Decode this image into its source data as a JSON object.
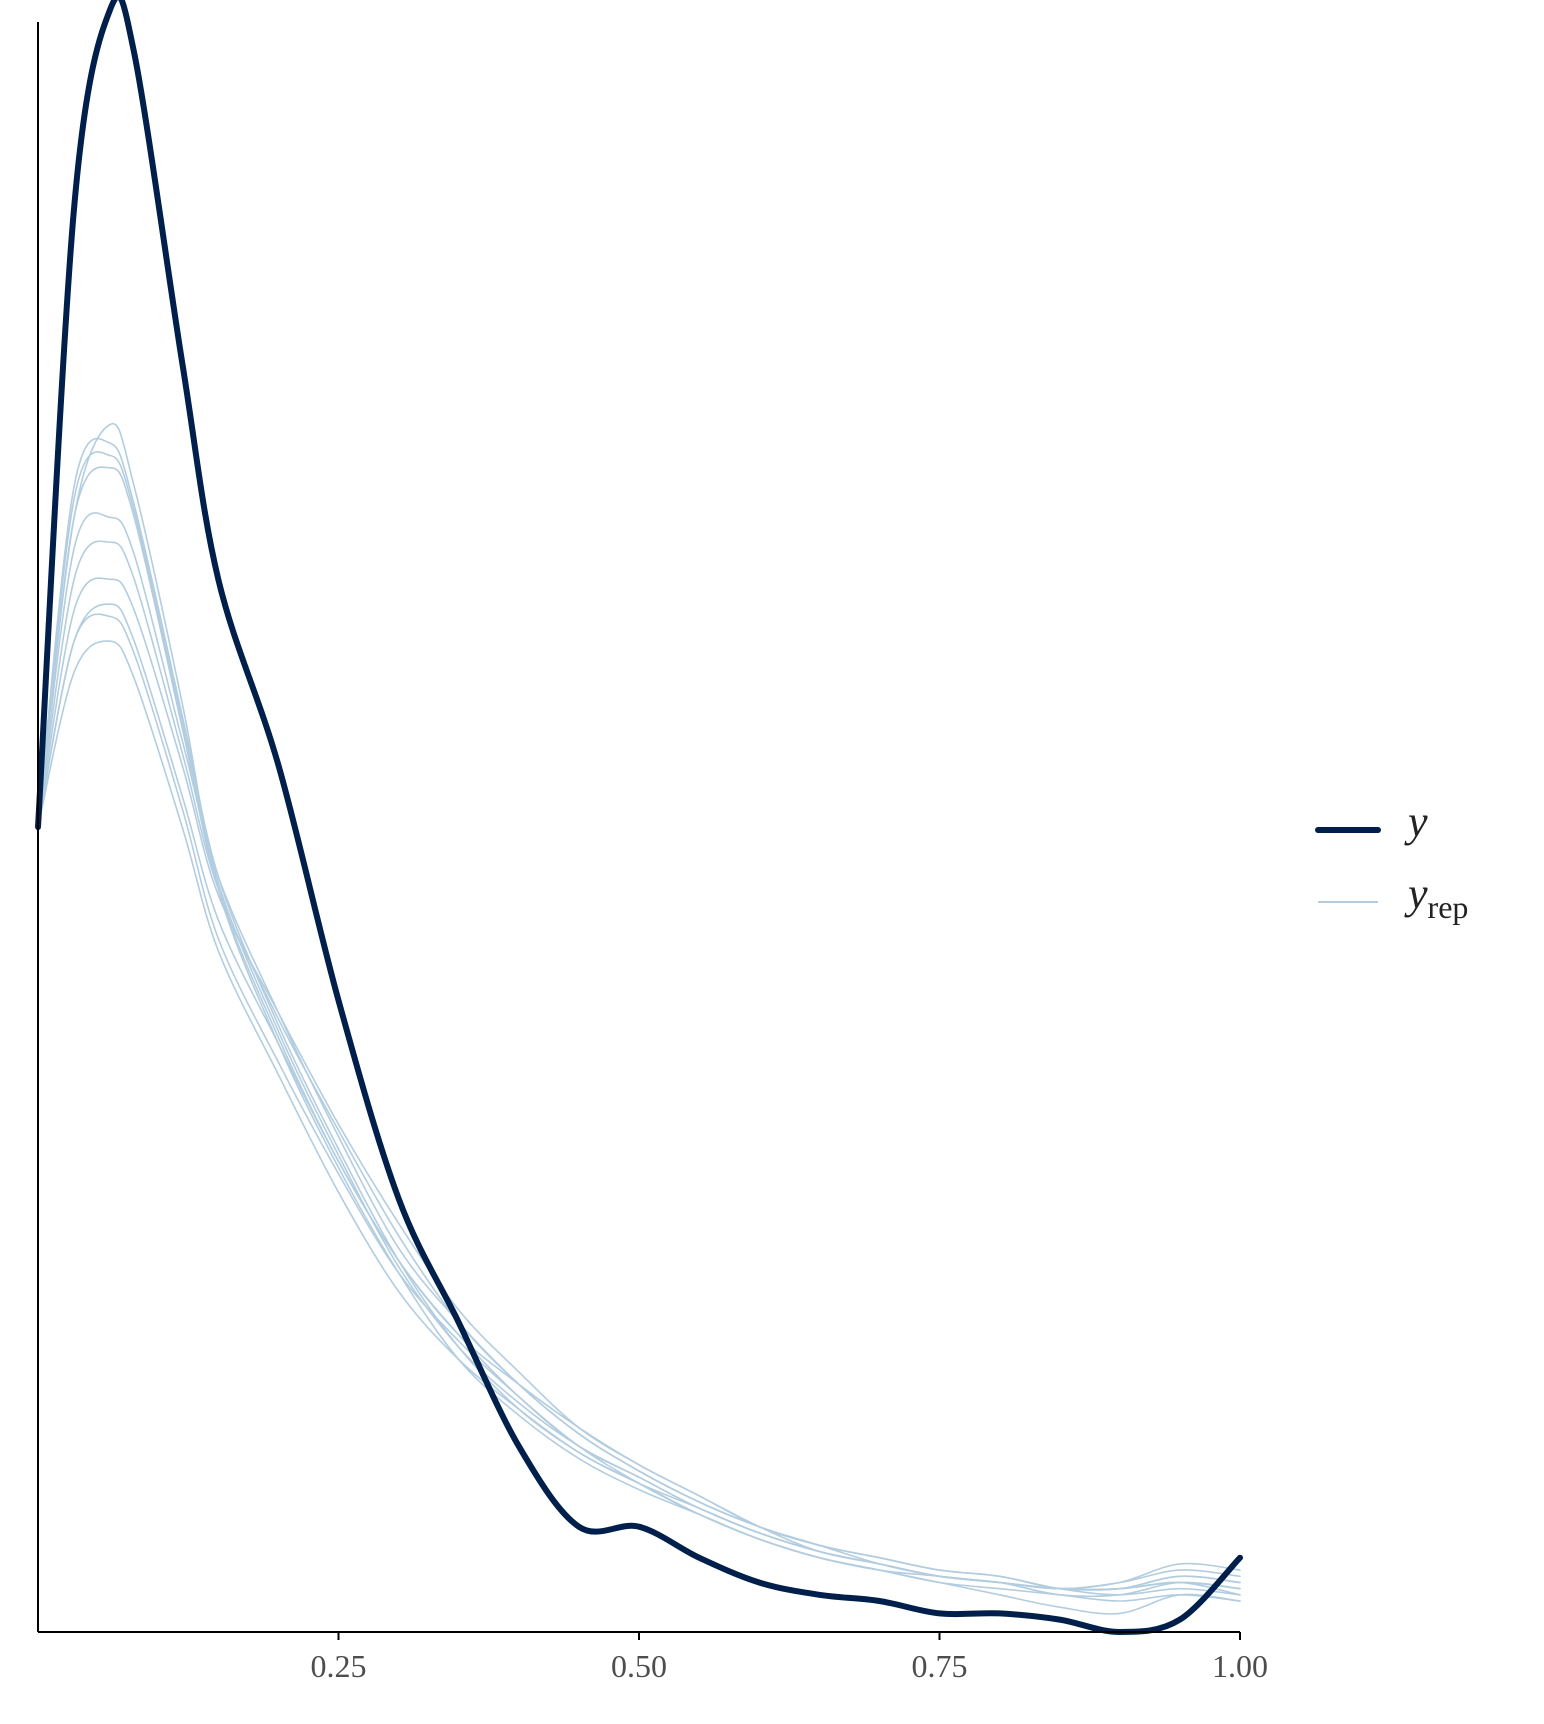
{
  "chart_data": {
    "type": "line",
    "title": "",
    "xlabel": "",
    "ylabel": "",
    "xlim": [
      0,
      1
    ],
    "ylim": [
      0,
      2.6
    ],
    "x_ticks": [
      0.25,
      0.5,
      0.75,
      1.0
    ],
    "x_tick_labels": [
      "0.25",
      "0.50",
      "0.75",
      "1.00"
    ],
    "y_ticks_shown": false,
    "grid": false,
    "legend": {
      "position": "right",
      "items": [
        {
          "key": "y",
          "label": "y",
          "subscript": ""
        },
        {
          "key": "yrep",
          "label": "y",
          "subscript": "rep"
        }
      ]
    },
    "colors": {
      "y": "#011f4b",
      "yrep": "#b3cde0"
    },
    "x": [
      0.0,
      0.03,
      0.06,
      0.08,
      0.12,
      0.15,
      0.2,
      0.25,
      0.3,
      0.35,
      0.4,
      0.45,
      0.5,
      0.55,
      0.6,
      0.65,
      0.7,
      0.75,
      0.8,
      0.85,
      0.9,
      0.95,
      1.0
    ],
    "series": [
      {
        "key": "y",
        "values": [
          1.3,
          2.3,
          2.62,
          2.55,
          2.05,
          1.7,
          1.4,
          1.02,
          0.7,
          0.5,
          0.3,
          0.17,
          0.17,
          0.12,
          0.08,
          0.06,
          0.05,
          0.03,
          0.03,
          0.02,
          0.0,
          0.02,
          0.12
        ]
      },
      {
        "key": "yrep",
        "values": [
          1.3,
          1.8,
          1.95,
          1.85,
          1.5,
          1.2,
          0.95,
          0.75,
          0.58,
          0.44,
          0.35,
          0.28,
          0.23,
          0.19,
          0.15,
          0.12,
          0.1,
          0.09,
          0.08,
          0.07,
          0.08,
          0.1,
          0.09
        ]
      },
      {
        "key": "yrep",
        "values": [
          1.3,
          1.85,
          1.92,
          1.82,
          1.48,
          1.22,
          0.98,
          0.78,
          0.6,
          0.46,
          0.36,
          0.29,
          0.24,
          0.2,
          0.16,
          0.13,
          0.11,
          0.09,
          0.08,
          0.07,
          0.07,
          0.09,
          0.08
        ]
      },
      {
        "key": "yrep",
        "values": [
          1.3,
          1.8,
          1.88,
          1.8,
          1.46,
          1.2,
          0.96,
          0.76,
          0.6,
          0.48,
          0.38,
          0.3,
          0.25,
          0.2,
          0.16,
          0.13,
          0.11,
          0.09,
          0.08,
          0.06,
          0.06,
          0.08,
          0.07
        ]
      },
      {
        "key": "yrep",
        "values": [
          1.3,
          1.83,
          1.9,
          1.81,
          1.47,
          1.21,
          0.97,
          0.77,
          0.59,
          0.46,
          0.37,
          0.3,
          0.25,
          0.2,
          0.16,
          0.13,
          0.11,
          0.09,
          0.08,
          0.07,
          0.07,
          0.08,
          0.07
        ]
      },
      {
        "key": "yrep",
        "values": [
          1.3,
          1.75,
          1.8,
          1.74,
          1.44,
          1.22,
          1.0,
          0.8,
          0.62,
          0.5,
          0.4,
          0.32,
          0.26,
          0.21,
          0.17,
          0.14,
          0.11,
          0.09,
          0.08,
          0.07,
          0.07,
          0.09,
          0.08
        ]
      },
      {
        "key": "yrep",
        "values": [
          1.3,
          1.7,
          1.76,
          1.7,
          1.42,
          1.2,
          0.99,
          0.81,
          0.64,
          0.5,
          0.4,
          0.32,
          0.26,
          0.21,
          0.17,
          0.14,
          0.12,
          0.1,
          0.09,
          0.07,
          0.06,
          0.07,
          0.06
        ]
      },
      {
        "key": "yrep",
        "values": [
          1.3,
          1.65,
          1.7,
          1.65,
          1.4,
          1.19,
          1.0,
          0.82,
          0.66,
          0.52,
          0.42,
          0.33,
          0.27,
          0.22,
          0.17,
          0.14,
          0.12,
          0.1,
          0.09,
          0.07,
          0.07,
          0.08,
          0.06
        ]
      },
      {
        "key": "yrep",
        "values": [
          1.3,
          1.6,
          1.64,
          1.58,
          1.33,
          1.12,
          0.92,
          0.74,
          0.58,
          0.47,
          0.38,
          0.3,
          0.24,
          0.19,
          0.15,
          0.12,
          0.1,
          0.08,
          0.07,
          0.06,
          0.05,
          0.06,
          0.05
        ]
      },
      {
        "key": "yrep",
        "values": [
          1.3,
          1.6,
          1.66,
          1.6,
          1.35,
          1.15,
          0.95,
          0.76,
          0.6,
          0.48,
          0.4,
          0.33,
          0.27,
          0.22,
          0.17,
          0.13,
          0.11,
          0.09,
          0.08,
          0.07,
          0.08,
          0.11,
          0.1
        ]
      },
      {
        "key": "yrep",
        "values": [
          1.3,
          1.55,
          1.6,
          1.54,
          1.3,
          1.1,
          0.9,
          0.71,
          0.55,
          0.44,
          0.36,
          0.29,
          0.24,
          0.19,
          0.15,
          0.12,
          0.1,
          0.08,
          0.06,
          0.04,
          0.03,
          0.06,
          0.05
        ]
      }
    ]
  }
}
